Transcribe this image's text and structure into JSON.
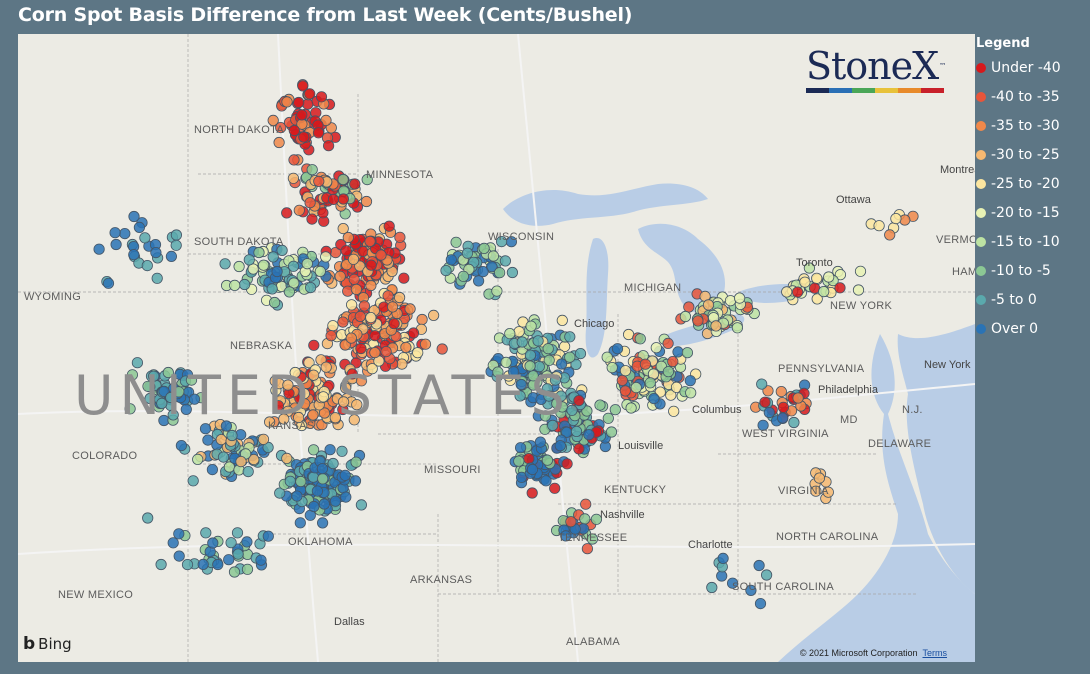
{
  "title": "Corn Spot Basis Difference from Last Week (Cents/Bushel)",
  "legend": {
    "title": "Legend",
    "items": [
      {
        "label": "Under -40",
        "color": "#d7191c"
      },
      {
        "label": "-40 to -35",
        "color": "#e8553a"
      },
      {
        "label": "-35 to -30",
        "color": "#f0884a"
      },
      {
        "label": "-30 to -25",
        "color": "#f6b871"
      },
      {
        "label": "-25 to -20",
        "color": "#fce6a0"
      },
      {
        "label": "-20 to -15",
        "color": "#e8f2b4"
      },
      {
        "label": "-15 to -10",
        "color": "#bde3a3"
      },
      {
        "label": "-10 to -5",
        "color": "#8cc894"
      },
      {
        "label": "-5 to 0",
        "color": "#5aa9ad"
      },
      {
        "label": "Over 0",
        "color": "#2a73b5"
      }
    ]
  },
  "logo": {
    "text": "StoneX",
    "tm": "™",
    "bar_colors": [
      "#1b2a55",
      "#2a6fb5",
      "#4aa657",
      "#e8c23a",
      "#e88a2a",
      "#c8202a"
    ]
  },
  "map": {
    "provider": "Bing",
    "copyright": "© 2021 Microsoft Corporation",
    "terms": "Terms",
    "colors": {
      "land": "#ecebe4",
      "water": "#b9cde6",
      "border": "#a7a7a7",
      "road": "#f4f4f4"
    },
    "places": [
      {
        "label": "NORTH DAKOTA",
        "kind": "state"
      },
      {
        "label": "MINNESOTA",
        "kind": "state"
      },
      {
        "label": "SOUTH DAKOTA",
        "kind": "state"
      },
      {
        "label": "WYOMING",
        "kind": "state"
      },
      {
        "label": "NEBRASKA",
        "kind": "state"
      },
      {
        "label": "WISCONSIN",
        "kind": "state"
      },
      {
        "label": "MICHIGAN",
        "kind": "state"
      },
      {
        "label": "COLORADO",
        "kind": "state"
      },
      {
        "label": "KANSAS",
        "kind": "state"
      },
      {
        "label": "MISSOURI",
        "kind": "state"
      },
      {
        "label": "OKLAHOMA",
        "kind": "state"
      },
      {
        "label": "ARKANSAS",
        "kind": "state"
      },
      {
        "label": "NEW MEXICO",
        "kind": "state"
      },
      {
        "label": "ALABAMA",
        "kind": "state"
      },
      {
        "label": "TENNESSEE",
        "kind": "state"
      },
      {
        "label": "KENTUCKY",
        "kind": "state"
      },
      {
        "label": "WEST VIRGINIA",
        "kind": "state"
      },
      {
        "label": "VIRGINIA",
        "kind": "state"
      },
      {
        "label": "NORTH CAROLINA",
        "kind": "state"
      },
      {
        "label": "SOUTH CAROLINA",
        "kind": "state"
      },
      {
        "label": "PENNSYLVANIA",
        "kind": "state"
      },
      {
        "label": "NEW YORK",
        "kind": "state"
      },
      {
        "label": "MD",
        "kind": "state"
      },
      {
        "label": "DELAWARE",
        "kind": "state"
      },
      {
        "label": "N.J.",
        "kind": "state"
      },
      {
        "label": "VERMONT",
        "kind": "state"
      },
      {
        "label": "HAM",
        "kind": "state"
      },
      {
        "label": "Chicago",
        "kind": "city"
      },
      {
        "label": "Columbus",
        "kind": "city"
      },
      {
        "label": "Louisville",
        "kind": "city"
      },
      {
        "label": "Nashville",
        "kind": "city"
      },
      {
        "label": "Charlotte",
        "kind": "city"
      },
      {
        "label": "Dallas",
        "kind": "city"
      },
      {
        "label": "Toronto",
        "kind": "city"
      },
      {
        "label": "Ottawa",
        "kind": "city"
      },
      {
        "label": "Montreal",
        "kind": "city"
      },
      {
        "label": "New York",
        "kind": "city"
      },
      {
        "label": "Philadelphia",
        "kind": "city"
      },
      {
        "label": "UNITED STATES",
        "kind": "country"
      }
    ]
  }
}
